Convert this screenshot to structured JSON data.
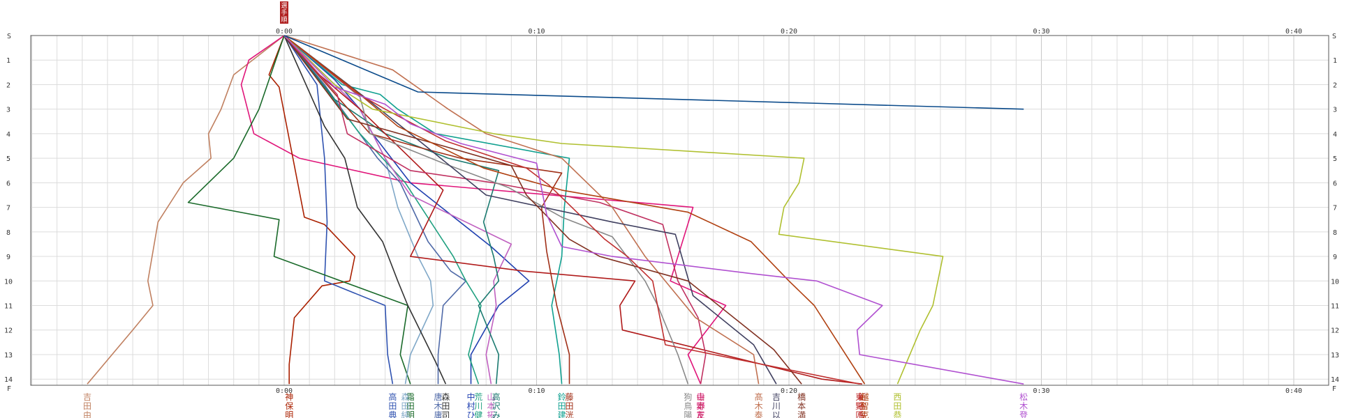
{
  "chart_data": {
    "type": "line",
    "title": "",
    "top_marker": "選手順",
    "x_axis": {
      "unit": "elapsed time (h:mm)",
      "range_minutes": [
        -10,
        40
      ],
      "tick_labels": [
        "0:00",
        "0:10",
        "0:20",
        "0:30",
        "0:40"
      ],
      "tick_minutes": [
        0,
        10,
        20,
        30,
        40
      ],
      "grid": true
    },
    "y_axis": {
      "unit": "segment number",
      "start_label": "S",
      "finish_label": "F",
      "tick_labels": [
        "1",
        "2",
        "3",
        "4",
        "5",
        "6",
        "7",
        "8",
        "9",
        "10",
        "11",
        "12",
        "13",
        "14"
      ],
      "tick_values": [
        1,
        2,
        3,
        4,
        5,
        6,
        7,
        8,
        9,
        10,
        11,
        12,
        13,
        14
      ],
      "direction": "downward",
      "grid": true
    },
    "series": [
      {
        "name": "吉田由",
        "color": "#c08060",
        "points": [
          [
            0,
            0
          ],
          [
            -2,
            1.6
          ],
          [
            -2.5,
            3
          ],
          [
            -3,
            4
          ],
          [
            -2.9,
            5
          ],
          [
            -4,
            6
          ],
          [
            -5,
            7.6
          ],
          [
            -5.4,
            10
          ],
          [
            -5.2,
            11
          ],
          [
            -6,
            12
          ],
          [
            -7.8,
            14.2
          ]
        ]
      },
      {
        "name": "寺野友",
        "color": "#e0157a",
        "points": [
          [
            0,
            0
          ],
          [
            -1.4,
            1
          ],
          [
            -1.7,
            2
          ],
          [
            -1.2,
            4
          ],
          [
            0.6,
            5
          ],
          [
            5,
            6
          ],
          [
            16.2,
            7
          ],
          [
            15.3,
            10
          ],
          [
            17.5,
            11
          ],
          [
            16,
            13
          ],
          [
            16.5,
            14.2
          ]
        ]
      },
      {
        "name": "神保明",
        "color": "#aa2000",
        "points": [
          [
            0,
            0
          ],
          [
            -0.6,
            1.6
          ],
          [
            -0.2,
            2.1
          ],
          [
            0.8,
            7.4
          ],
          [
            1.6,
            7.7
          ],
          [
            2.8,
            9
          ],
          [
            2.6,
            10
          ],
          [
            1.5,
            10.2
          ],
          [
            0.4,
            11.5
          ],
          [
            0.2,
            13.4
          ],
          [
            0.2,
            14.2
          ]
        ]
      },
      {
        "name": "高田典",
        "color": "#2f52b0",
        "points": [
          [
            0,
            0
          ],
          [
            1.3,
            2
          ],
          [
            1.6,
            5
          ],
          [
            1.7,
            7.6
          ],
          [
            1.6,
            10
          ],
          [
            4,
            11
          ],
          [
            4.1,
            13
          ],
          [
            4.3,
            14.2
          ]
        ]
      },
      {
        "name": "霜田明",
        "color": "#1a6a2a",
        "points": [
          [
            0,
            0
          ],
          [
            -1,
            3
          ],
          [
            -2,
            5
          ],
          [
            -3.8,
            6.8
          ],
          [
            -0.2,
            7.5
          ],
          [
            -0.4,
            9
          ],
          [
            4.9,
            11
          ],
          [
            4.6,
            13
          ],
          [
            5,
            14.2
          ]
        ]
      },
      {
        "name": "森田純",
        "color": "#80a8c8",
        "points": [
          [
            0,
            0
          ],
          [
            2,
            2
          ],
          [
            3,
            3
          ],
          [
            4,
            5
          ],
          [
            4.5,
            7
          ],
          [
            5.3,
            9
          ],
          [
            5.8,
            10
          ],
          [
            5.9,
            11
          ],
          [
            5,
            13
          ],
          [
            4.8,
            14.2
          ]
        ]
      },
      {
        "name": "森田司",
        "color": "#333333",
        "points": [
          [
            0,
            0
          ],
          [
            1.6,
            3.7
          ],
          [
            2.4,
            5
          ],
          [
            2.9,
            7
          ],
          [
            3.9,
            8.4
          ],
          [
            4.5,
            10
          ],
          [
            4.9,
            11
          ],
          [
            6,
            13.3
          ],
          [
            6.4,
            14.2
          ]
        ]
      },
      {
        "name": "唐木庸",
        "color": "#506aa8",
        "points": [
          [
            0,
            0
          ],
          [
            1.6,
            2
          ],
          [
            2,
            2.6
          ],
          [
            3.7,
            5
          ],
          [
            4.6,
            6
          ],
          [
            5.7,
            8.4
          ],
          [
            6.6,
            9.6
          ],
          [
            7.2,
            10
          ],
          [
            6.3,
            11
          ],
          [
            6.1,
            13
          ],
          [
            6.1,
            14.2
          ]
        ]
      },
      {
        "name": "中村ひ",
        "color": "#2040b0",
        "points": [
          [
            0,
            0
          ],
          [
            2,
            1.8
          ],
          [
            3,
            3
          ],
          [
            3.5,
            4
          ],
          [
            5,
            6
          ],
          [
            8.2,
            8.6
          ],
          [
            9.7,
            10
          ],
          [
            8.5,
            11
          ],
          [
            7.4,
            13
          ],
          [
            7.4,
            14.2
          ]
        ]
      },
      {
        "name": "荒川健",
        "color": "#20a080",
        "points": [
          [
            0,
            0
          ],
          [
            1.8,
            2.4
          ],
          [
            3,
            4
          ],
          [
            4.8,
            6
          ],
          [
            6.7,
            9
          ],
          [
            7.2,
            10
          ],
          [
            7.8,
            11
          ],
          [
            7.3,
            13
          ],
          [
            7.7,
            14.2
          ]
        ]
      },
      {
        "name": "山本拓",
        "color": "#c060c0",
        "points": [
          [
            0,
            0
          ],
          [
            3,
            3
          ],
          [
            4,
            5
          ],
          [
            5,
            6.5
          ],
          [
            9,
            8.5
          ],
          [
            8.3,
            10
          ],
          [
            8.4,
            11
          ],
          [
            8,
            13
          ],
          [
            8.2,
            14.2
          ]
        ]
      },
      {
        "name": "高沢み",
        "color": "#1a7a70",
        "points": [
          [
            0,
            0
          ],
          [
            2,
            2.6
          ],
          [
            4,
            4
          ],
          [
            6.5,
            5
          ],
          [
            8.5,
            5.5
          ],
          [
            7.9,
            7.6
          ],
          [
            8.3,
            9
          ],
          [
            8.5,
            10
          ],
          [
            7.7,
            11
          ],
          [
            8.5,
            13
          ],
          [
            8.4,
            14.2
          ]
        ]
      },
      {
        "name": "新谷良",
        "color": "#b01a1a",
        "points": [
          [
            0,
            0
          ],
          [
            1.4,
            1.6
          ],
          [
            3,
            3
          ],
          [
            5,
            5
          ],
          [
            6.3,
            6.3
          ],
          [
            5,
            9
          ],
          [
            9.5,
            9.6
          ],
          [
            13.9,
            10
          ],
          [
            13.3,
            11
          ],
          [
            13.4,
            12
          ],
          [
            15,
            12.4
          ],
          [
            21.3,
            14
          ],
          [
            22.9,
            14.2
          ]
        ]
      },
      {
        "name": "鈴田建",
        "color": "#10a090",
        "points": [
          [
            0,
            0
          ],
          [
            2.3,
            2
          ],
          [
            3.8,
            2.4
          ],
          [
            4.5,
            3
          ],
          [
            6,
            4
          ],
          [
            11.3,
            5
          ],
          [
            11.2,
            6
          ],
          [
            11.1,
            7
          ],
          [
            11,
            9
          ],
          [
            10.6,
            11
          ],
          [
            10.9,
            13
          ],
          [
            11,
            14.2
          ]
        ]
      },
      {
        "name": "藤田洸",
        "color": "#a03018",
        "points": [
          [
            0,
            0
          ],
          [
            1.6,
            1.9
          ],
          [
            3.4,
            4
          ],
          [
            5.5,
            4.6
          ],
          [
            7,
            5
          ],
          [
            11,
            5.6
          ],
          [
            10.2,
            7
          ],
          [
            10.4,
            8.8
          ],
          [
            10.8,
            11
          ],
          [
            11.3,
            13
          ],
          [
            11.3,
            14.2
          ]
        ]
      },
      {
        "name": "山本正",
        "color": "#c03060",
        "points": [
          [
            0,
            0
          ],
          [
            2.1,
            2.4
          ],
          [
            2.5,
            4
          ],
          [
            5,
            5.5
          ],
          [
            8.3,
            6
          ],
          [
            12.5,
            6.8
          ],
          [
            15,
            7.7
          ],
          [
            15.6,
            10
          ],
          [
            16.4,
            11.5
          ],
          [
            16.7,
            13
          ],
          [
            16.5,
            14.2
          ]
        ]
      },
      {
        "name": "狗鳥陽",
        "color": "#888888",
        "points": [
          [
            0,
            0
          ],
          [
            3,
            2.5
          ],
          [
            3.4,
            4
          ],
          [
            6.3,
            5.2
          ],
          [
            8.9,
            6.2
          ],
          [
            11,
            7.4
          ],
          [
            13,
            8.2
          ],
          [
            14.3,
            10
          ],
          [
            14.8,
            11
          ],
          [
            15.6,
            13
          ],
          [
            16,
            14.2
          ]
        ]
      },
      {
        "name": "髙木泰",
        "color": "#c07050",
        "points": [
          [
            0,
            0
          ],
          [
            4.3,
            1.4
          ],
          [
            6.5,
            3
          ],
          [
            8,
            4
          ],
          [
            11,
            5
          ],
          [
            13,
            7
          ],
          [
            14.3,
            9
          ],
          [
            16.3,
            11.5
          ],
          [
            18.6,
            13
          ],
          [
            18.8,
            14.2
          ]
        ]
      },
      {
        "name": "吉川以",
        "color": "#404060",
        "points": [
          [
            0,
            0
          ],
          [
            3.3,
            2.6
          ],
          [
            5,
            4
          ],
          [
            8,
            6.5
          ],
          [
            13,
            7.6
          ],
          [
            15.5,
            8.1
          ],
          [
            16.2,
            10.6
          ],
          [
            18.6,
            12.6
          ],
          [
            19.5,
            14.2
          ]
        ]
      },
      {
        "name": "橋本満",
        "color": "#803020",
        "points": [
          [
            0,
            0
          ],
          [
            2.5,
            3.4
          ],
          [
            6.3,
            4.5
          ],
          [
            9,
            5.3
          ],
          [
            9.6,
            6.5
          ],
          [
            11.3,
            8.3
          ],
          [
            12.5,
            9
          ],
          [
            16,
            10
          ],
          [
            19.4,
            12.8
          ],
          [
            20.5,
            14.2
          ]
        ]
      },
      {
        "name": "東野匠",
        "color": "#c03030",
        "points": [
          [
            0,
            0
          ],
          [
            2.8,
            2.3
          ],
          [
            4,
            3
          ],
          [
            6.4,
            4.3
          ],
          [
            9.6,
            5.4
          ],
          [
            10.5,
            6.1
          ],
          [
            12.7,
            8.3
          ],
          [
            13.6,
            9
          ],
          [
            14.6,
            10
          ],
          [
            15.1,
            12.6
          ],
          [
            22.8,
            14.2
          ]
        ]
      },
      {
        "name": "越智克",
        "color": "#b04010",
        "points": [
          [
            0,
            0
          ],
          [
            3,
            2.4
          ],
          [
            4.5,
            3.7
          ],
          [
            7.9,
            5.4
          ],
          [
            11,
            6.3
          ],
          [
            16,
            7.2
          ],
          [
            18.5,
            8.4
          ],
          [
            20,
            10
          ],
          [
            21,
            11
          ],
          [
            22,
            12.6
          ],
          [
            23,
            14.2
          ]
        ]
      },
      {
        "name": "西田恭",
        "color": "#b0c030",
        "points": [
          [
            0,
            0
          ],
          [
            2,
            2
          ],
          [
            3.5,
            3
          ],
          [
            8.3,
            4
          ],
          [
            11,
            4.4
          ],
          [
            20.6,
            5
          ],
          [
            20.4,
            6
          ],
          [
            19.8,
            7
          ],
          [
            19.6,
            8.1
          ],
          [
            26.1,
            9
          ],
          [
            25.7,
            11
          ],
          [
            25.2,
            12
          ],
          [
            24.3,
            14.2
          ]
        ]
      },
      {
        "name": "松木登",
        "color": "#b050d0",
        "points": [
          [
            0,
            0
          ],
          [
            2,
            2.1
          ],
          [
            4,
            2.8
          ],
          [
            5,
            3.6
          ],
          [
            7,
            4.4
          ],
          [
            10,
            5.2
          ],
          [
            10.4,
            7.3
          ],
          [
            11,
            8.6
          ],
          [
            13,
            9
          ],
          [
            18.5,
            9.7
          ],
          [
            21.1,
            10
          ],
          [
            23.7,
            11
          ],
          [
            22.7,
            12
          ],
          [
            22.8,
            13
          ],
          [
            29.3,
            14.2
          ]
        ]
      },
      {
        "name": "",
        "color": "#0a4a8a",
        "points": [
          [
            0,
            0
          ],
          [
            5.3,
            2.3
          ],
          [
            29.3,
            3
          ]
        ]
      }
    ]
  }
}
